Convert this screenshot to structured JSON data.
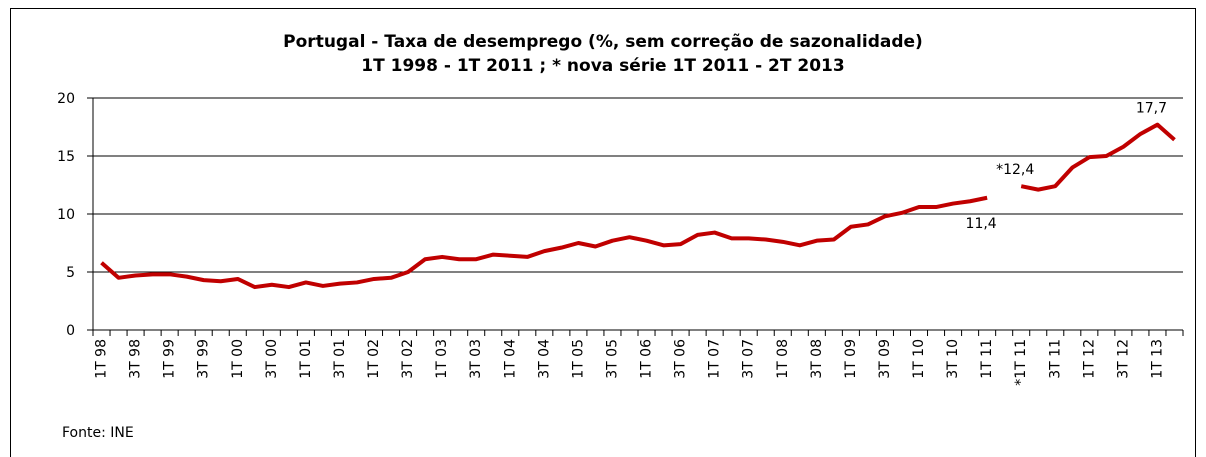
{
  "chart_data": {
    "type": "line",
    "title": "Portugal - Taxa de desemprego (%, sem correção de sazonalidade)",
    "subtitle": "1T 1998 - 1T 2011 ; * nova série 1T 2011 - 2T 2013",
    "source": "Fonte: INE",
    "categories": [
      "1T 98",
      null,
      "3T 98",
      null,
      "1T 99",
      null,
      "3T 99",
      null,
      "1T 00",
      null,
      "3T 00",
      null,
      "1T 01",
      null,
      "3T 01",
      null,
      "1T 02",
      null,
      "3T 02",
      null,
      "1T 03",
      null,
      "3T 03",
      null,
      "1T 04",
      null,
      "3T 04",
      null,
      "1T 05",
      null,
      "3T 05",
      null,
      "1T 06",
      null,
      "3T 06",
      null,
      "1T 07",
      null,
      "3T 07",
      null,
      "1T 08",
      null,
      "3T 08",
      null,
      "1T 09",
      null,
      "3T 09",
      null,
      "1T 10",
      null,
      "3T 10",
      null,
      "1T 11",
      null,
      "*1T 11",
      null,
      "3T 11",
      null,
      "1T 12",
      null,
      "3T 12",
      null,
      "1T 13",
      null
    ],
    "series": [
      {
        "color": "#c00000",
        "values": [
          5.8,
          4.5,
          4.7,
          4.8,
          4.8,
          4.6,
          4.3,
          4.2,
          4.4,
          3.7,
          3.9,
          3.7,
          4.1,
          3.8,
          4.0,
          4.1,
          4.4,
          4.5,
          5.0,
          6.1,
          6.3,
          6.1,
          6.1,
          6.5,
          6.4,
          6.3,
          6.8,
          7.1,
          7.5,
          7.2,
          7.7,
          8.0,
          7.7,
          7.3,
          7.4,
          8.2,
          8.4,
          7.9,
          7.9,
          7.8,
          7.6,
          7.3,
          7.7,
          7.8,
          8.9,
          9.1,
          9.8,
          10.1,
          10.6,
          10.6,
          10.9,
          11.1,
          11.4,
          null,
          12.4,
          12.1,
          12.4,
          14.0,
          14.9,
          15.0,
          15.8,
          16.9,
          17.7,
          16.4
        ],
        "value_labels": [
          null,
          null,
          null,
          null,
          null,
          null,
          null,
          null,
          null,
          null,
          null,
          null,
          null,
          null,
          null,
          null,
          null,
          null,
          null,
          null,
          null,
          null,
          null,
          null,
          null,
          null,
          null,
          null,
          null,
          null,
          null,
          null,
          null,
          null,
          null,
          null,
          null,
          null,
          null,
          null,
          null,
          null,
          null,
          null,
          null,
          null,
          null,
          null,
          null,
          null,
          null,
          null,
          "11,4",
          null,
          "*12,4",
          null,
          null,
          null,
          null,
          null,
          null,
          null,
          "17,7",
          null
        ]
      }
    ],
    "ylim": [
      0,
      20
    ],
    "yticks": [
      0,
      5,
      10,
      15,
      20
    ],
    "grid": true
  }
}
